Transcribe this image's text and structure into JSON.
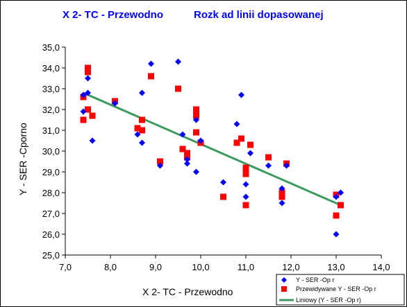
{
  "chart_data": {
    "type": "scatter",
    "title_part1": "X 2- TC - Przewodno",
    "title_part2": "Rozk ad linii dopasowanej",
    "xlabel": "X 2- TC - Przewodno",
    "ylabel": "Y - SER -Cporno",
    "xlim": [
      7.0,
      14.0
    ],
    "ylim": [
      25.0,
      35.0
    ],
    "x_ticks": [
      "7,0",
      "8,0",
      "9,0",
      "10,0",
      "11,0",
      "12,0",
      "13,0",
      "14,0"
    ],
    "y_ticks": [
      "25,0",
      "26,0",
      "27,0",
      "28,0",
      "29,0",
      "30,0",
      "31,0",
      "32,0",
      "33,0",
      "34,0",
      "35,0"
    ],
    "grid": false,
    "legend_position": "bottom-right",
    "series": [
      {
        "name": "Y - SER -Op r",
        "marker": "diamond",
        "color": "#0000ff",
        "points": [
          [
            7.4,
            32.7
          ],
          [
            7.5,
            32.8
          ],
          [
            7.5,
            33.5
          ],
          [
            7.4,
            31.9
          ],
          [
            7.6,
            30.5
          ],
          [
            8.1,
            32.3
          ],
          [
            8.6,
            30.8
          ],
          [
            8.7,
            30.4
          ],
          [
            8.7,
            32.8
          ],
          [
            8.9,
            34.2
          ],
          [
            9.1,
            29.3
          ],
          [
            9.5,
            34.3
          ],
          [
            9.6,
            30.8
          ],
          [
            9.7,
            29.6
          ],
          [
            9.7,
            29.4
          ],
          [
            9.9,
            29.0
          ],
          [
            9.9,
            31.5
          ],
          [
            10.0,
            30.5
          ],
          [
            10.5,
            28.5
          ],
          [
            10.8,
            31.3
          ],
          [
            10.9,
            32.7
          ],
          [
            11.0,
            28.4
          ],
          [
            11.0,
            27.8
          ],
          [
            11.1,
            29.9
          ],
          [
            11.5,
            29.3
          ],
          [
            11.8,
            28.2
          ],
          [
            11.8,
            27.5
          ],
          [
            11.9,
            29.3
          ],
          [
            13.0,
            26.0
          ],
          [
            13.0,
            27.8
          ],
          [
            13.1,
            28.0
          ]
        ]
      },
      {
        "name": "Przewidywane Y - SER -Op r",
        "marker": "square",
        "color": "#ff0000",
        "points": [
          [
            7.4,
            32.6
          ],
          [
            7.4,
            31.5
          ],
          [
            7.5,
            34.0
          ],
          [
            7.5,
            33.8
          ],
          [
            7.5,
            32.0
          ],
          [
            7.6,
            31.7
          ],
          [
            8.1,
            32.4
          ],
          [
            8.6,
            31.1
          ],
          [
            8.7,
            31.0
          ],
          [
            8.7,
            31.5
          ],
          [
            8.9,
            33.6
          ],
          [
            9.1,
            29.5
          ],
          [
            9.5,
            33.0
          ],
          [
            9.6,
            30.1
          ],
          [
            9.7,
            29.9
          ],
          [
            9.7,
            29.7
          ],
          [
            9.9,
            32.0
          ],
          [
            9.9,
            31.7
          ],
          [
            9.9,
            30.9
          ],
          [
            10.0,
            30.4
          ],
          [
            10.5,
            27.8
          ],
          [
            10.8,
            30.4
          ],
          [
            10.9,
            30.6
          ],
          [
            11.0,
            29.2
          ],
          [
            11.0,
            28.9
          ],
          [
            11.0,
            27.4
          ],
          [
            11.1,
            30.3
          ],
          [
            11.5,
            29.7
          ],
          [
            11.8,
            28.0
          ],
          [
            11.8,
            27.8
          ],
          [
            11.9,
            29.4
          ],
          [
            13.0,
            27.9
          ],
          [
            13.0,
            26.9
          ],
          [
            13.1,
            27.4
          ]
        ]
      },
      {
        "name": "Liniowy (Y - SER -Op r)",
        "type": "line",
        "color": "#3c9a5f",
        "points": [
          [
            7.4,
            32.8
          ],
          [
            13.1,
            27.4
          ]
        ]
      }
    ]
  }
}
